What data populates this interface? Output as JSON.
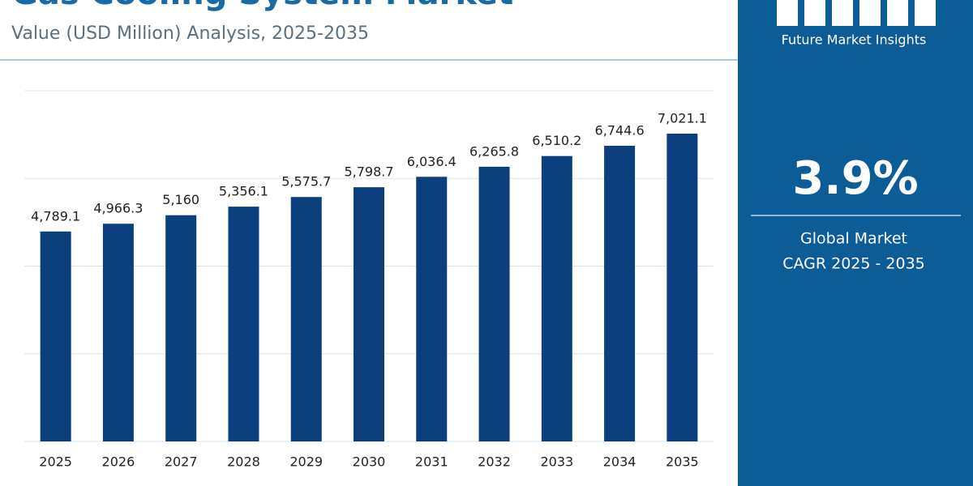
{
  "chart_data": {
    "type": "bar",
    "title": "Gas Cooling System Market",
    "subtitle": "Value (USD Million) Analysis, 2025-2035",
    "categories": [
      "2025",
      "2026",
      "2027",
      "2028",
      "2029",
      "2030",
      "2031",
      "2032",
      "2033",
      "2034",
      "2035"
    ],
    "values": [
      4789.1,
      4966.3,
      5160,
      5356.1,
      5575.7,
      5798.7,
      6036.4,
      6265.8,
      6510.2,
      6744.6,
      7021.1
    ],
    "value_labels": [
      "4,789.1",
      "4,966.3",
      "5,160",
      "5,356.1",
      "5,575.7",
      "5,798.7",
      "6,036.4",
      "6,265.8",
      "6,510.2",
      "6,744.6",
      "7,021.1"
    ],
    "color": "#0b3f7e",
    "ylim": [
      0,
      8000
    ],
    "yticks": [
      0,
      2000,
      4000,
      6000,
      8000
    ],
    "grid": true
  },
  "sidebar": {
    "brand": "Future Market Insights",
    "cagr_value": "3.9%",
    "cagr_label": [
      "Global Market",
      "CAGR 2025 - 2035"
    ]
  }
}
